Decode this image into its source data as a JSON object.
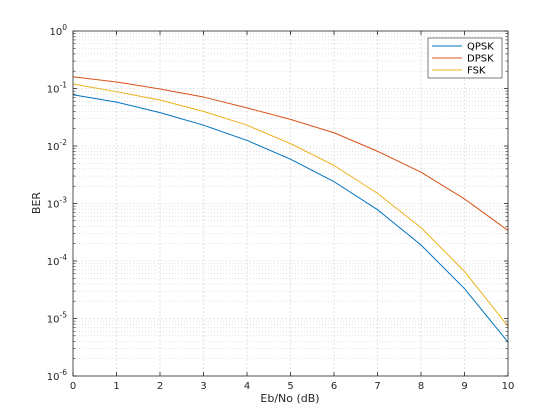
{
  "chart_data": {
    "type": "line",
    "title": "",
    "xlabel": "Eb/No (dB)",
    "ylabel": "BER",
    "x": [
      0,
      1,
      2,
      3,
      4,
      5,
      6,
      7,
      8,
      9,
      10
    ],
    "xlim": [
      0,
      10
    ],
    "ylim": [
      1e-06,
      1
    ],
    "yscale": "log",
    "x_ticks": [
      "0",
      "1",
      "2",
      "3",
      "4",
      "5",
      "6",
      "7",
      "8",
      "9",
      "10"
    ],
    "y_ticks": [
      {
        "value": 1,
        "base": "10",
        "exp": "0"
      },
      {
        "value": 0.1,
        "base": "10",
        "exp": "-1"
      },
      {
        "value": 0.01,
        "base": "10",
        "exp": "-2"
      },
      {
        "value": 0.001,
        "base": "10",
        "exp": "-3"
      },
      {
        "value": 0.0001,
        "base": "10",
        "exp": "-4"
      },
      {
        "value": 1e-05,
        "base": "10",
        "exp": "-5"
      },
      {
        "value": 1e-06,
        "base": "10",
        "exp": "-6"
      }
    ],
    "grid": true,
    "minor_grid": true,
    "legend_position": "top-right",
    "series": [
      {
        "name": "QPSK",
        "color": "#0072BD",
        "values": [
          0.078,
          0.058,
          0.038,
          0.023,
          0.0125,
          0.0059,
          0.0024,
          0.00078,
          0.00019,
          3.3e-05,
          3.9e-06
        ]
      },
      {
        "name": "DPSK",
        "color": "#D95319",
        "values": [
          0.16,
          0.13,
          0.098,
          0.071,
          0.046,
          0.029,
          0.017,
          0.0081,
          0.0035,
          0.0012,
          0.00034
        ]
      },
      {
        "name": "FSK",
        "color": "#EDB120",
        "values": [
          0.12,
          0.088,
          0.063,
          0.04,
          0.023,
          0.011,
          0.0046,
          0.0015,
          0.00038,
          6.6e-05,
          7.3e-06
        ]
      }
    ]
  }
}
